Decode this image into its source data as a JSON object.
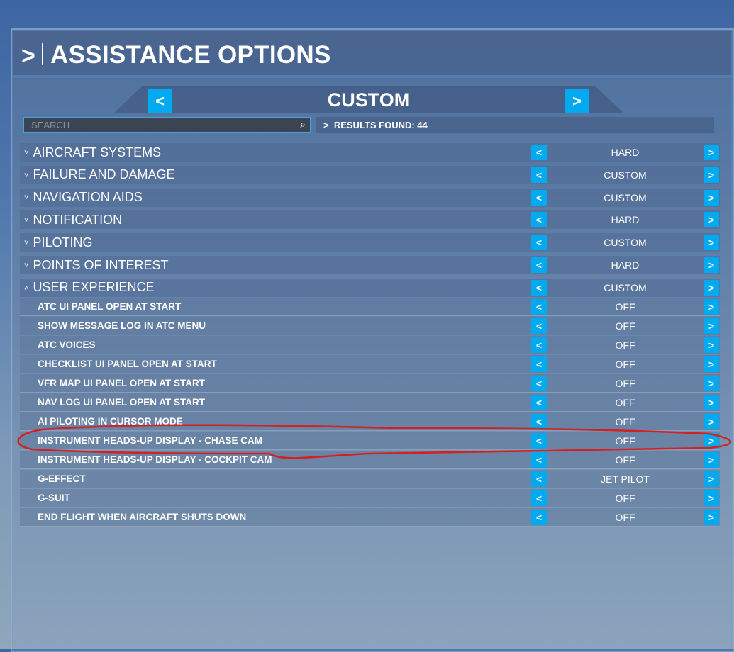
{
  "header": {
    "title": "ASSISTANCE OPTIONS"
  },
  "preset": {
    "value": "CUSTOM"
  },
  "search": {
    "placeholder": "SEARCH"
  },
  "results": {
    "text": "RESULTS FOUND: 44"
  },
  "categories": [
    {
      "label": "AIRCRAFT SYSTEMS",
      "value": "HARD",
      "expanded": false
    },
    {
      "label": "FAILURE AND DAMAGE",
      "value": "CUSTOM",
      "expanded": false
    },
    {
      "label": "NAVIGATION AIDS",
      "value": "CUSTOM",
      "expanded": false
    },
    {
      "label": "NOTIFICATION",
      "value": "HARD",
      "expanded": false
    },
    {
      "label": "PILOTING",
      "value": "CUSTOM",
      "expanded": false
    },
    {
      "label": "POINTS OF INTEREST",
      "value": "HARD",
      "expanded": false
    },
    {
      "label": "USER EXPERIENCE",
      "value": "CUSTOM",
      "expanded": true
    }
  ],
  "options": [
    {
      "label": "ATC UI PANEL OPEN AT START",
      "value": "OFF"
    },
    {
      "label": "SHOW MESSAGE LOG IN ATC MENU",
      "value": "OFF"
    },
    {
      "label": "ATC VOICES",
      "value": "OFF"
    },
    {
      "label": "CHECKLIST UI PANEL OPEN AT START",
      "value": "OFF"
    },
    {
      "label": "VFR MAP UI PANEL OPEN AT START",
      "value": "OFF"
    },
    {
      "label": "NAV LOG UI PANEL OPEN AT START",
      "value": "OFF"
    },
    {
      "label": "AI PILOTING IN CURSOR MODE",
      "value": "OFF"
    },
    {
      "label": "INSTRUMENT HEADS-UP DISPLAY - CHASE CAM",
      "value": "OFF"
    },
    {
      "label": "INSTRUMENT HEADS-UP DISPLAY - COCKPIT CAM",
      "value": "OFF"
    },
    {
      "label": "G-EFFECT",
      "value": "JET PILOT"
    },
    {
      "label": "G-SUIT",
      "value": "OFF"
    },
    {
      "label": "END FLIGHT WHEN AIRCRAFT SHUTS DOWN",
      "value": "OFF"
    }
  ],
  "annotation": {
    "color": "#d42020"
  },
  "accent": "#00aaf0"
}
